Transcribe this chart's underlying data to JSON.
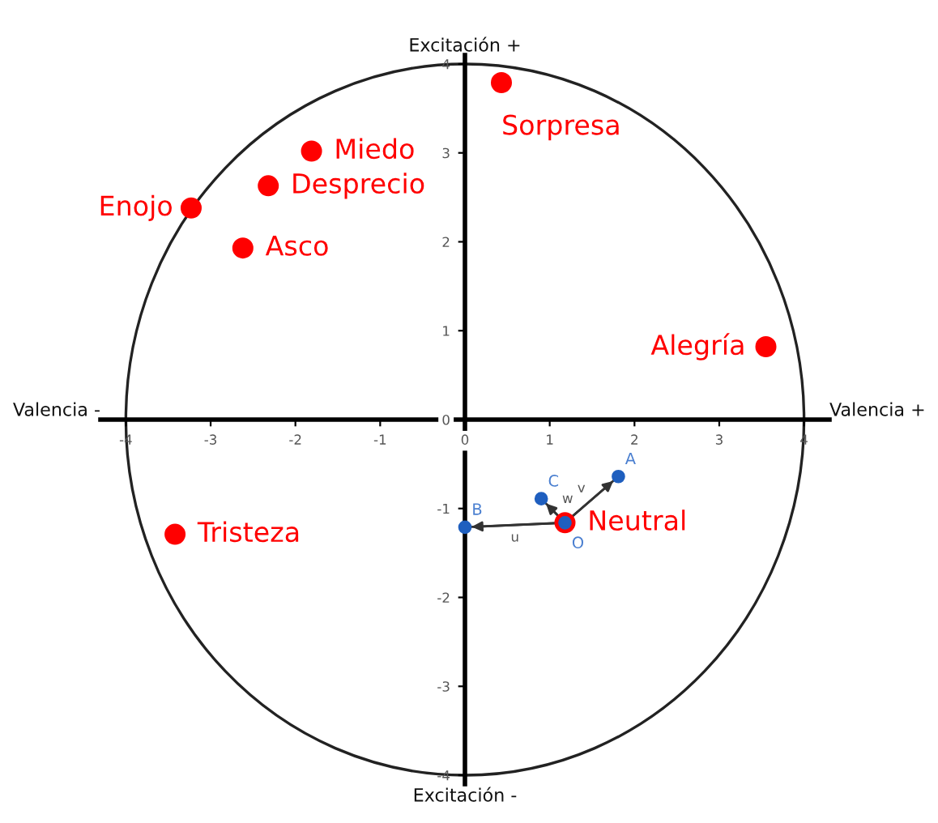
{
  "chart_data": {
    "type": "scatter",
    "xlim": [
      -4.3,
      4.3
    ],
    "ylim": [
      -4.1,
      4.1
    ],
    "xticks": [
      -4,
      -3,
      -2,
      -1,
      0,
      1,
      2,
      3,
      4
    ],
    "yticks": [
      -4,
      -3,
      -2,
      -1,
      0,
      1,
      2,
      3,
      4
    ],
    "grid": false,
    "marker": "circle",
    "series": [
      {
        "color": "#ff0000",
        "x": [
          0.43,
          -1.81,
          -2.32,
          -3.23,
          -2.62,
          3.55,
          -3.42,
          1.18
        ],
        "values": [
          3.79,
          3.02,
          2.63,
          2.38,
          1.93,
          0.82,
          -1.29,
          -1.16
        ]
      },
      {
        "type": "line",
        "marker": "none",
        "color": "#333333",
        "x": [
          1.18,
          1.81
        ],
        "values": [
          -1.16,
          -0.64
        ]
      },
      {
        "type": "line",
        "marker": "none",
        "color": "#333333",
        "x": [
          1.18,
          0
        ],
        "values": [
          -1.16,
          -1.21
        ]
      },
      {
        "type": "line",
        "marker": "none",
        "color": "#333333",
        "x": [
          1.18,
          0.9
        ],
        "values": [
          -1.16,
          -0.89
        ]
      },
      {
        "color": "#1f5fbf",
        "x": [
          1.81,
          0,
          0.9,
          1.18
        ],
        "values": [
          -0.64,
          -1.21,
          -0.89,
          -1.16
        ]
      }
    ],
    "annotations": [
      "Excitación +",
      "Excitación -",
      "Valencia -",
      "Valencia +",
      {
        "text": "Sorpresa",
        "x": 0.43,
        "y": 3.79
      },
      {
        "text": "Miedo",
        "x": -1.81,
        "y": 3.02
      },
      {
        "text": "Desprecio",
        "x": -2.32,
        "y": 2.63
      },
      {
        "text": "Enojo",
        "x": -3.23,
        "y": 2.38
      },
      {
        "text": "Asco",
        "x": -2.62,
        "y": 1.93
      },
      {
        "text": "Alegría",
        "x": 3.55,
        "y": 0.82
      },
      {
        "text": "Tristeza",
        "x": -3.42,
        "y": -1.29
      },
      {
        "text": "Neutral",
        "x": 1.18,
        "y": -1.16
      },
      {
        "text": "A",
        "x": 1.81,
        "y": -0.64
      },
      {
        "text": "B",
        "x": 0,
        "y": -1.21
      },
      {
        "text": "C",
        "x": 0.9,
        "y": -0.89
      },
      {
        "text": "O",
        "x": 1.18,
        "y": -1.16
      },
      {
        "text": "v",
        "x": 1.5,
        "y": -0.9
      },
      {
        "text": "u",
        "x": 0.59,
        "y": -1.18
      },
      {
        "text": "w",
        "x": 1.04,
        "y": -1.02
      }
    ]
  }
}
